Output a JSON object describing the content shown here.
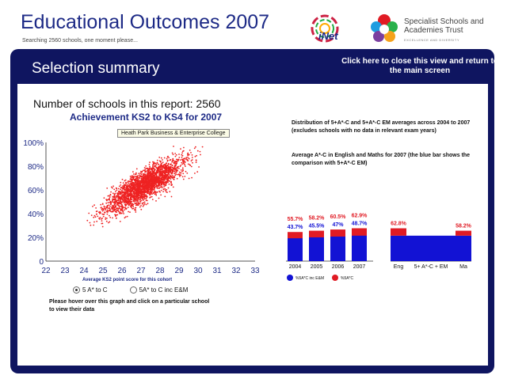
{
  "header": {
    "title": "Educational Outcomes 2007",
    "subtitle": "Searching 2560 schools, one moment please...",
    "inet_logo_text": "iNet",
    "ssat_name": "Specialist Schools and Academies Trust",
    "ssat_tagline": "EXCELLENCE AND DIVERSITY"
  },
  "panel": {
    "title": "Selection summary",
    "close_label": "Click here to close this view and return to the main screen"
  },
  "summary": {
    "count_text": "Number of schools in this report: 2560"
  },
  "scatter": {
    "title": "Achievement KS2 to KS4 for 2007",
    "tooltip": "Heath Park Business & Enterprise College",
    "x_title": "Average KS2 point score for this cohort",
    "hover_note": "Please hover over this graph and click on a particular school to view their data",
    "radio_options": [
      {
        "label": "5 A* to C",
        "selected": true
      },
      {
        "label": "5A* to C inc E&M",
        "selected": false
      }
    ]
  },
  "bar_panel": {
    "description_1": "Distribution of 5+A*-C and 5+A*-C EM averages across 2004 to 2007 (excludes schools with no data in relevant exam years)",
    "description_2": "Average A*-C in English and Maths for 2007 (the blue bar shows the comparison with 5+A*-C EM)"
  },
  "colors": {
    "navy": "#0f1560",
    "title_blue": "#1d2a86",
    "bar_blue": "#1212d4",
    "bar_red": "#e01b24",
    "point_red": "#ee2222"
  },
  "chart_data": [
    {
      "type": "scatter",
      "title": "Achievement KS2 to KS4 for 2007",
      "xlabel": "Average KS2 point score for this cohort",
      "ylabel": "",
      "x_ticks": [
        "22",
        "23",
        "24",
        "25",
        "26",
        "27",
        "28",
        "29",
        "30",
        "31",
        "32",
        "33"
      ],
      "y_ticks": [
        "0",
        "20%",
        "40%",
        "60%",
        "80%",
        "100%"
      ],
      "xlim": [
        22,
        33
      ],
      "ylim": [
        0,
        100
      ],
      "n_points": 2560,
      "trend": {
        "slope": 9.5,
        "intercept_at_27": 62,
        "noise_sd": 9,
        "x_mean": 27.2,
        "x_sd": 1.45
      }
    },
    {
      "type": "bar",
      "title": "",
      "categories": [
        "2004",
        "2005",
        "2006",
        "2007"
      ],
      "series": [
        {
          "name": "%5A*C inc E&M",
          "values": [
            43.7,
            45.5,
            47,
            48.7
          ]
        },
        {
          "name": "%5A*C",
          "values": [
            55.7,
            58.2,
            60.5,
            62.9
          ]
        }
      ],
      "labels_red": [
        "55.7%",
        "58.2%",
        "60.5%",
        "62.9%"
      ],
      "labels_blue": [
        "43.7%",
        "45.5%",
        "47%",
        "48.7%"
      ],
      "ylim": [
        0,
        100
      ],
      "legend": "bottom"
    },
    {
      "type": "bar",
      "title": "",
      "categories": [
        "Eng",
        "5+ A*-C + EM",
        "Ma"
      ],
      "series": [
        {
          "name": "A*-C EM",
          "values": [
            48.7,
            48.7,
            48.7
          ]
        },
        {
          "name": "A*-C",
          "values": [
            62.8,
            null,
            58.2
          ]
        }
      ],
      "labels_red": [
        "62.8%",
        "",
        "58.2%"
      ],
      "ylim": [
        0,
        100
      ]
    }
  ]
}
